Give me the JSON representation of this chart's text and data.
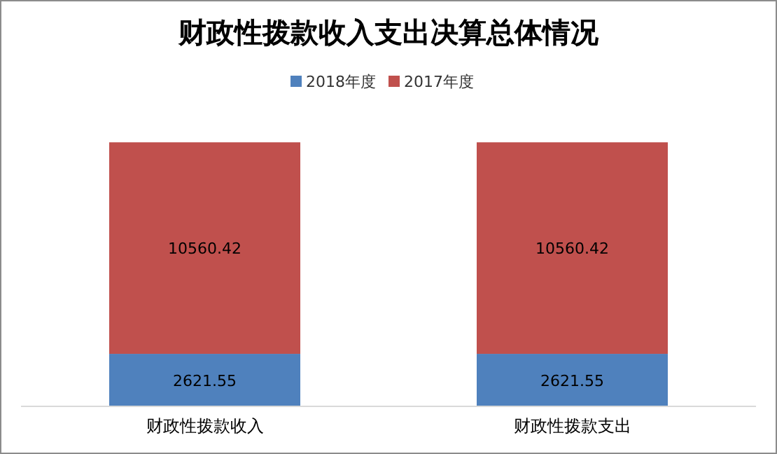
{
  "chart_data": {
    "type": "bar",
    "title": "财政性拨款收入支出决算总体情况",
    "categories": [
      "财政性拨款收入",
      "财政性拨款支出"
    ],
    "series": [
      {
        "name": "2018年度",
        "color": "#4f81bd",
        "values": [
          2621.55,
          2621.55
        ]
      },
      {
        "name": "2017年度",
        "color": "#c0504d",
        "values": [
          10560.42,
          10560.42
        ]
      }
    ],
    "stacked": true,
    "data_labels": true,
    "legend": "top"
  }
}
